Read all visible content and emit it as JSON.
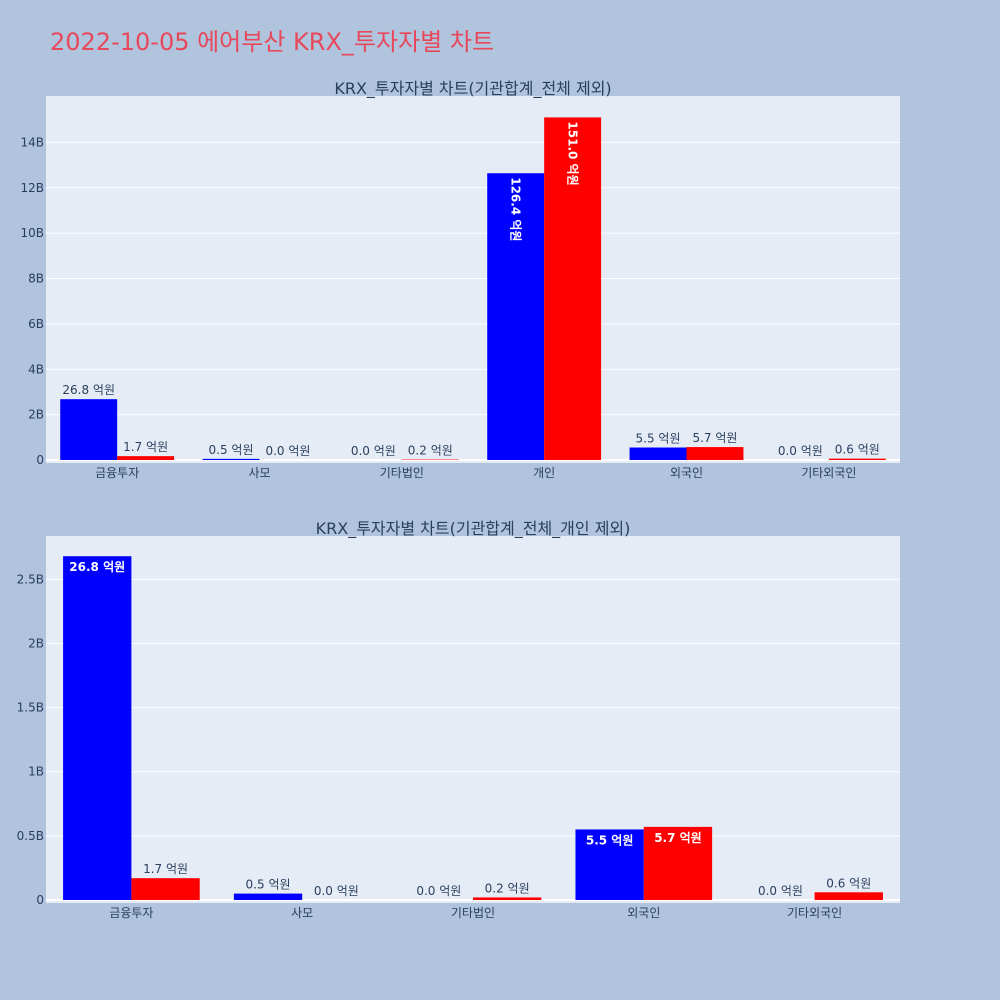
{
  "title": "2022-10-05 에어부산 KRX_투자자별 차트",
  "colors": {
    "buy": "#0000ff",
    "sell": "#ff0000",
    "paper": "#b0c4de",
    "plot": "#e5ecf6",
    "title": "#e8485b"
  },
  "chart_data": [
    {
      "type": "bar",
      "title": "KRX_투자자별 차트(기관합계_전체 제외)",
      "categories": [
        "금융투자",
        "사모",
        "기타법인",
        "개인",
        "외국인",
        "기타외국인"
      ],
      "series": [
        {
          "color": "#0000ff",
          "values": [
            2.68,
            0.05,
            0.0,
            12.64,
            0.55,
            0.0
          ],
          "labels": [
            "26.8 억원",
            "0.5 억원",
            "0.0 억원",
            "126.4 억원",
            "5.5 억원",
            "0.0 억원"
          ]
        },
        {
          "color": "#ff0000",
          "values": [
            0.17,
            0.0,
            0.02,
            15.1,
            0.57,
            0.06
          ],
          "labels": [
            "1.7 억원",
            "0.0 억원",
            "0.2 억원",
            "151.0 억원",
            "5.7 억원",
            "0.6 억원"
          ]
        }
      ],
      "ylim": [
        0,
        16.0
      ],
      "yticks": [
        0,
        2,
        4,
        6,
        8,
        10,
        12,
        14
      ],
      "ytick_labels": [
        "0",
        "2B",
        "4B",
        "6B",
        "8B",
        "10B",
        "12B",
        "14B"
      ],
      "grid": true
    },
    {
      "type": "bar",
      "title": "KRX_투자자별 차트(기관합계_전체_개인 제외)",
      "categories": [
        "금융투자",
        "사모",
        "기타법인",
        "외국인",
        "기타외국인"
      ],
      "series": [
        {
          "color": "#0000ff",
          "values": [
            2.68,
            0.05,
            0.0,
            0.55,
            0.0
          ],
          "labels": [
            "26.8 억원",
            "0.5 억원",
            "0.0 억원",
            "5.5 억원",
            "0.0 억원"
          ]
        },
        {
          "color": "#ff0000",
          "values": [
            0.17,
            0.0,
            0.02,
            0.57,
            0.06
          ],
          "labels": [
            "1.7 억원",
            "0.0 억원",
            "0.2 억원",
            "5.7 억원",
            "0.6 억원"
          ]
        }
      ],
      "ylim": [
        0,
        2.83
      ],
      "yticks": [
        0,
        0.5,
        1,
        1.5,
        2,
        2.5
      ],
      "ytick_labels": [
        "0",
        "0.5B",
        "1B",
        "1.5B",
        "2B",
        "2.5B"
      ],
      "grid": true
    }
  ]
}
